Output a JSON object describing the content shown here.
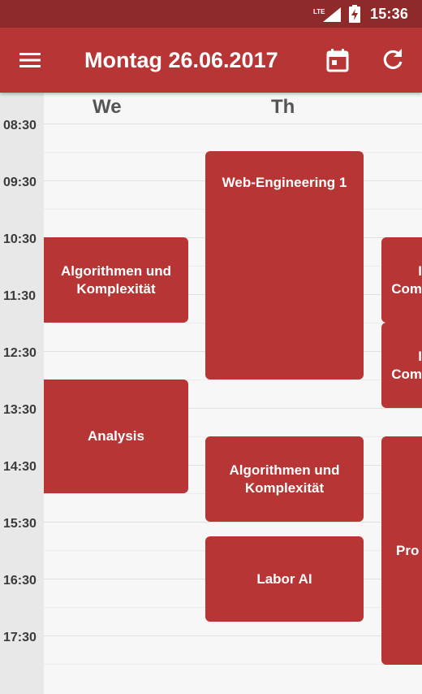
{
  "status_bar": {
    "network": "LTE",
    "time": "15:36"
  },
  "app_bar": {
    "menu_icon": "menu-icon",
    "title": "Montag 26.06.2017",
    "calendar_icon": "calendar-today-icon",
    "refresh_icon": "refresh-icon"
  },
  "colors": {
    "primary": "#b83535",
    "primary_dark": "#8f2a2a",
    "background": "#f7f7f7"
  },
  "day_headers": [
    "We",
    "Th"
  ],
  "time_labels": [
    "08:30",
    "09:30",
    "10:30",
    "11:30",
    "12:30",
    "13:30",
    "14:30",
    "15:30",
    "16:30",
    "17:30"
  ],
  "events": {
    "we_algorithmen": {
      "line1": "Algorithmen und",
      "line2": "Komplexität"
    },
    "we_analysis": {
      "line1": "Analysis"
    },
    "th_web": {
      "line1": "Web-Engineering 1"
    },
    "th_algorithmen": {
      "line1": "Algorithmen und",
      "line2": "Komplexität"
    },
    "th_labor": {
      "line1": "Labor AI"
    },
    "fr_first": {
      "line1": "I",
      "line2": "Com"
    },
    "fr_second": {
      "line1": "I",
      "line2": "Com"
    },
    "fr_third": {
      "line1": "Pro"
    }
  }
}
